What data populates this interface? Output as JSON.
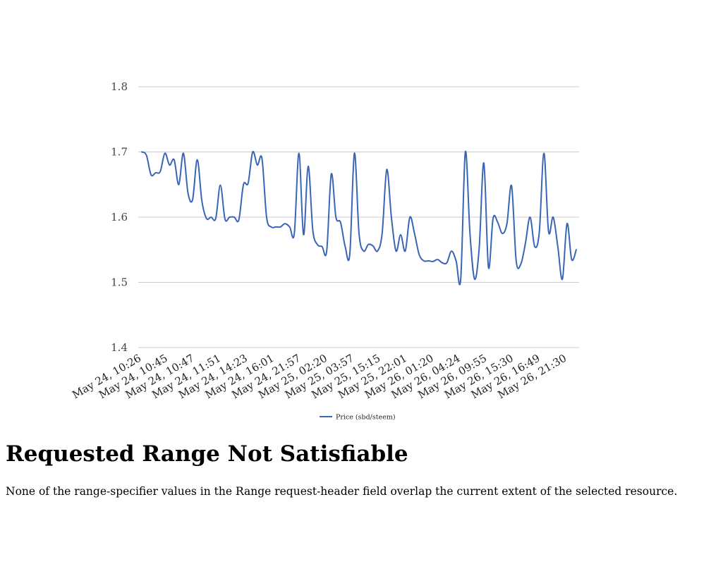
{
  "chart_data": {
    "type": "line",
    "title": "",
    "xlabel": "",
    "ylabel": "",
    "ylim": [
      1.4,
      1.8
    ],
    "y_ticks": [
      1.4,
      1.5,
      1.6,
      1.7,
      1.8
    ],
    "y_tick_labels": [
      "1.4",
      "1.5",
      "1.6",
      "1.7",
      "1.8"
    ],
    "grid": true,
    "legend_position": "bottom",
    "line_color": "#3a65b5",
    "x_tick_labels": [
      "May 24, 10:26",
      "May 24, 10:45",
      "May 24, 10:47",
      "May 24, 11:51",
      "May 24, 14:23",
      "May 24, 16:01",
      "May 24, 21:57",
      "May 25, 02:20",
      "May 25, 03:57",
      "May 25, 15:15",
      "May 25, 22:01",
      "May 26, 01:20",
      "May 26, 04:24",
      "May 26, 09:55",
      "May 26, 15:30",
      "May 26, 16:49",
      "May 26, 21:30"
    ],
    "series": [
      {
        "name": "Price (sbd/steem)",
        "values": [
          1.7,
          1.695,
          1.665,
          1.668,
          1.67,
          1.698,
          1.68,
          1.688,
          1.65,
          1.698,
          1.637,
          1.627,
          1.688,
          1.625,
          1.598,
          1.6,
          1.598,
          1.649,
          1.597,
          1.6,
          1.6,
          1.596,
          1.65,
          1.652,
          1.7,
          1.68,
          1.69,
          1.6,
          1.585,
          1.585,
          1.585,
          1.59,
          1.585,
          1.575,
          1.698,
          1.573,
          1.678,
          1.58,
          1.558,
          1.555,
          1.548,
          1.666,
          1.6,
          1.592,
          1.555,
          1.543,
          1.698,
          1.575,
          1.548,
          1.558,
          1.556,
          1.548,
          1.575,
          1.673,
          1.6,
          1.548,
          1.573,
          1.548,
          1.6,
          1.575,
          1.543,
          1.533,
          1.533,
          1.532,
          1.535,
          1.53,
          1.53,
          1.548,
          1.533,
          1.505,
          1.7,
          1.575,
          1.505,
          1.553,
          1.683,
          1.523,
          1.598,
          1.592,
          1.575,
          1.59,
          1.648,
          1.533,
          1.528,
          1.56,
          1.6,
          1.555,
          1.577,
          1.698,
          1.578,
          1.6,
          1.555,
          1.505,
          1.59,
          1.535,
          1.55
        ]
      }
    ]
  },
  "page": {
    "heading": "Requested Range Not Satisfiable",
    "message": "None of the range-specifier values in the Range request-header field overlap the current extent of the selected resource."
  }
}
